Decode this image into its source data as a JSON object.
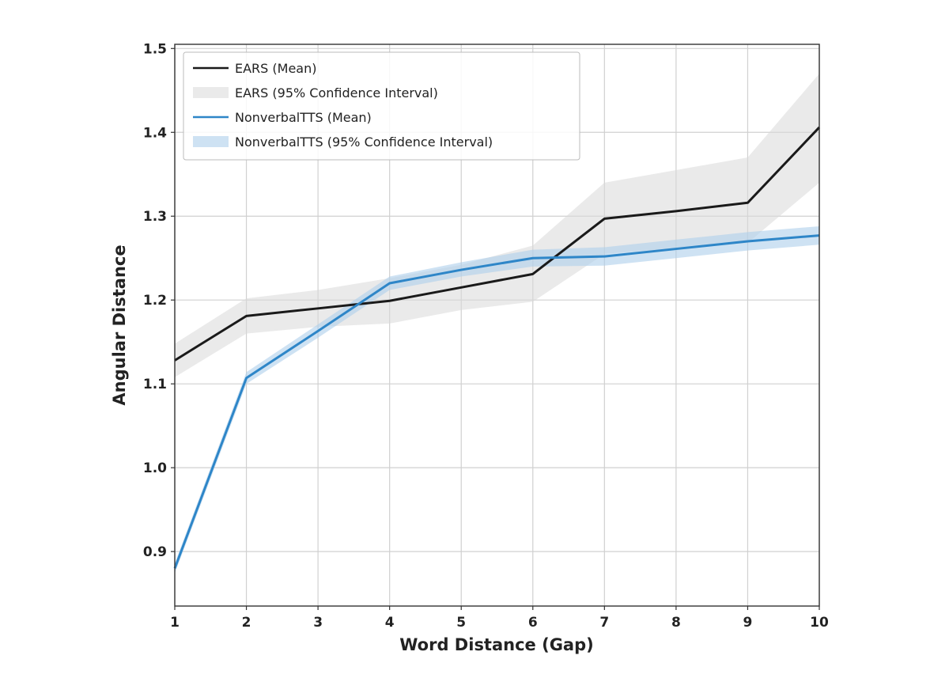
{
  "chart_data": {
    "type": "line",
    "xlabel": "Word Distance (Gap)",
    "ylabel": "Angular Distance",
    "x": [
      1,
      2,
      3,
      4,
      5,
      6,
      7,
      8,
      9,
      10
    ],
    "xlim": [
      1,
      10
    ],
    "ylim": [
      0.835,
      1.505
    ],
    "xticks": [
      "1",
      "2",
      "3",
      "4",
      "5",
      "6",
      "7",
      "8",
      "9",
      "10"
    ],
    "yticks": [
      "0.9",
      "1.0",
      "1.1",
      "1.2",
      "1.3",
      "1.4",
      "1.5"
    ],
    "grid": true,
    "legend_position": "top-left",
    "series": [
      {
        "name": "EARS (Mean)",
        "color": "#1a1a1a",
        "values": [
          1.128,
          1.181,
          1.19,
          1.199,
          1.215,
          1.231,
          1.297,
          1.306,
          1.316,
          1.406
        ],
        "ci_name": "EARS (95% Confidence Interval)",
        "ci_color": "#d9d9d9",
        "ci_lower": [
          1.108,
          1.16,
          1.168,
          1.172,
          1.188,
          1.198,
          1.255,
          1.262,
          1.268,
          1.34
        ],
        "ci_upper": [
          1.148,
          1.202,
          1.212,
          1.226,
          1.242,
          1.265,
          1.34,
          1.355,
          1.37,
          1.47
        ]
      },
      {
        "name": "NonverbalTTS (Mean)",
        "color": "#2e86c8",
        "values": [
          0.88,
          1.107,
          1.163,
          1.22,
          1.236,
          1.25,
          1.252,
          1.261,
          1.27,
          1.277
        ],
        "ci_name": "NonverbalTTS (95% Confidence Interval)",
        "ci_color": "#aecfeb",
        "ci_lower": [
          0.874,
          1.1,
          1.155,
          1.212,
          1.228,
          1.24,
          1.241,
          1.25,
          1.259,
          1.266
        ],
        "ci_upper": [
          0.886,
          1.114,
          1.171,
          1.228,
          1.245,
          1.26,
          1.263,
          1.272,
          1.281,
          1.288
        ]
      }
    ]
  }
}
